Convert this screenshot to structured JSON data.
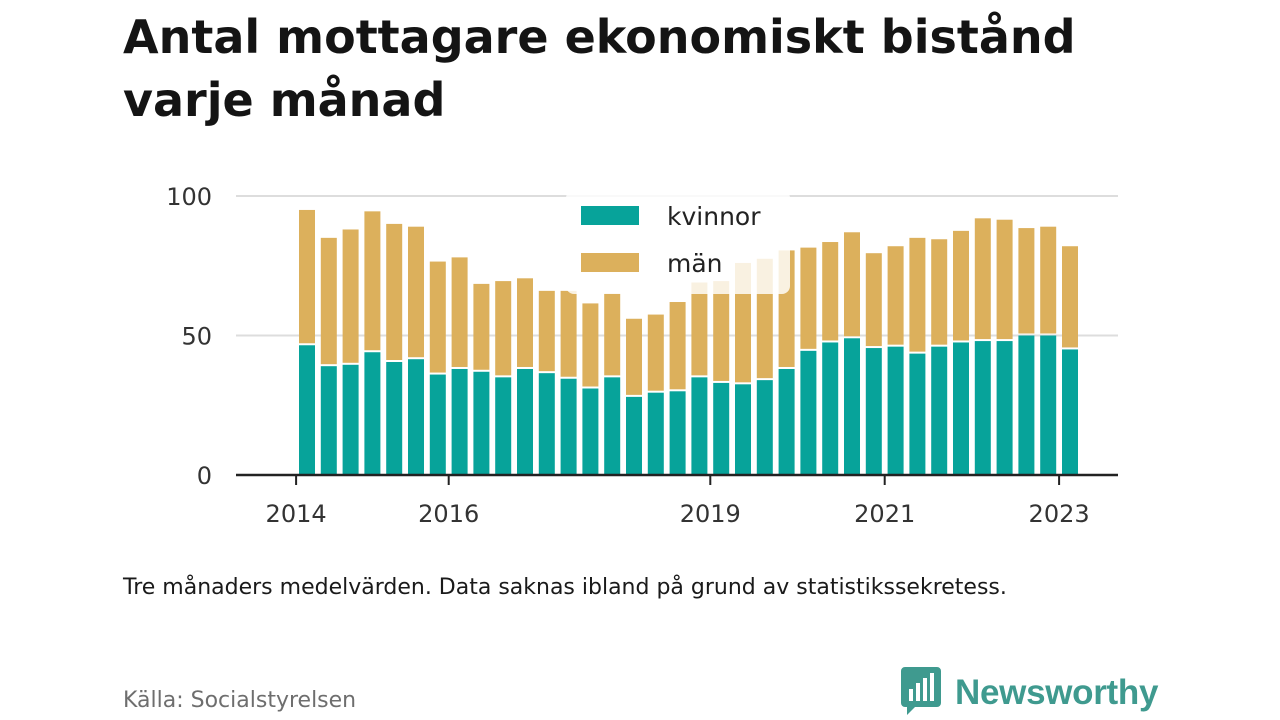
{
  "title": "Antal mottagare ekonomiskt bistånd varje månad",
  "note": "Tre månaders medelvärden. Data saknas ibland på grund av statistikssekretess.",
  "source": "Källa: Socialstyrelsen",
  "brand": {
    "name": "Newsworthy",
    "icon": "newsworthy-logo-icon",
    "color": "#3f9a8f"
  },
  "colors": {
    "kvinnor": "#07a39a",
    "man": "#dcb05c",
    "grid": "#dddddd",
    "axis": "#222222"
  },
  "chart_data": {
    "type": "bar",
    "stacked": true,
    "title": "Antal mottagare ekonomiskt bistånd varje månad",
    "xlabel": "",
    "ylabel": "",
    "ylim": [
      0,
      100
    ],
    "yticks": [
      0,
      50,
      100
    ],
    "xticks": [
      {
        "label": "2014",
        "index": -0.5
      },
      {
        "label": "2016",
        "index": 6.5
      },
      {
        "label": "2019",
        "index": 18.5
      },
      {
        "label": "2021",
        "index": 26.5
      },
      {
        "label": "2023",
        "index": 34.5
      }
    ],
    "grid": true,
    "legend_position": "top-center",
    "series": [
      {
        "name": "kvinnor",
        "values": [
          46.5,
          39,
          39.5,
          44,
          40.5,
          41.5,
          36,
          38,
          37,
          35,
          38,
          36.5,
          34.5,
          31,
          35,
          28,
          29.5,
          30,
          35,
          33,
          32.5,
          34,
          38,
          44.5,
          47.5,
          49,
          45.5,
          46,
          43.5,
          46,
          47.5,
          48,
          48,
          50,
          50,
          45
        ]
      },
      {
        "name": "män",
        "values": [
          48.5,
          46,
          48.5,
          50.5,
          49.5,
          47.5,
          40.5,
          40,
          31.5,
          34.5,
          32.5,
          29.5,
          31.5,
          30.5,
          30,
          28,
          28,
          32,
          34,
          36.5,
          43.5,
          43.5,
          42.5,
          37,
          36,
          38,
          34,
          36,
          41.5,
          38.5,
          40,
          44,
          43.5,
          38.5,
          39,
          37
        ]
      }
    ]
  }
}
